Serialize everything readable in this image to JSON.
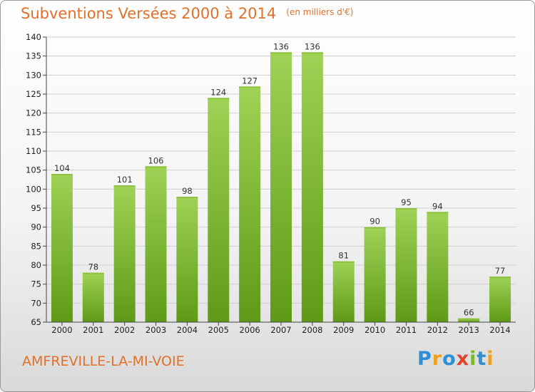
{
  "chart_data": {
    "type": "bar",
    "title": "Subventions Versées 2000 à 2014",
    "subtitle": "(en milliers d'€)",
    "categories": [
      "2000",
      "2001",
      "2002",
      "2003",
      "2004",
      "2005",
      "2006",
      "2007",
      "2008",
      "2009",
      "2010",
      "2011",
      "2012",
      "2013",
      "2014"
    ],
    "values": [
      104,
      78,
      101,
      106,
      98,
      124,
      127,
      136,
      136,
      81,
      90,
      95,
      94,
      66,
      77
    ],
    "ylim": [
      65,
      140
    ],
    "yticks": [
      65,
      70,
      75,
      80,
      85,
      90,
      95,
      100,
      105,
      110,
      115,
      120,
      125,
      130,
      135,
      140
    ],
    "grid": true,
    "colors": {
      "bar_top": "#9fd256",
      "bar_bottom": "#5e9a17",
      "text_accent": "#e0702a"
    }
  },
  "footer": {
    "commune": "AMFREVILLE-LA-MI-VOIE"
  },
  "logo": {
    "text": "Proxiti",
    "letters": [
      "P",
      "r",
      "o",
      "x",
      "i",
      "t",
      "i"
    ],
    "colors": [
      "#2f8fd6",
      "#f0a21e",
      "#2f8fd6",
      "#e2432c",
      "#7ab92b",
      "#2f8fd6",
      "#f0a21e"
    ]
  }
}
